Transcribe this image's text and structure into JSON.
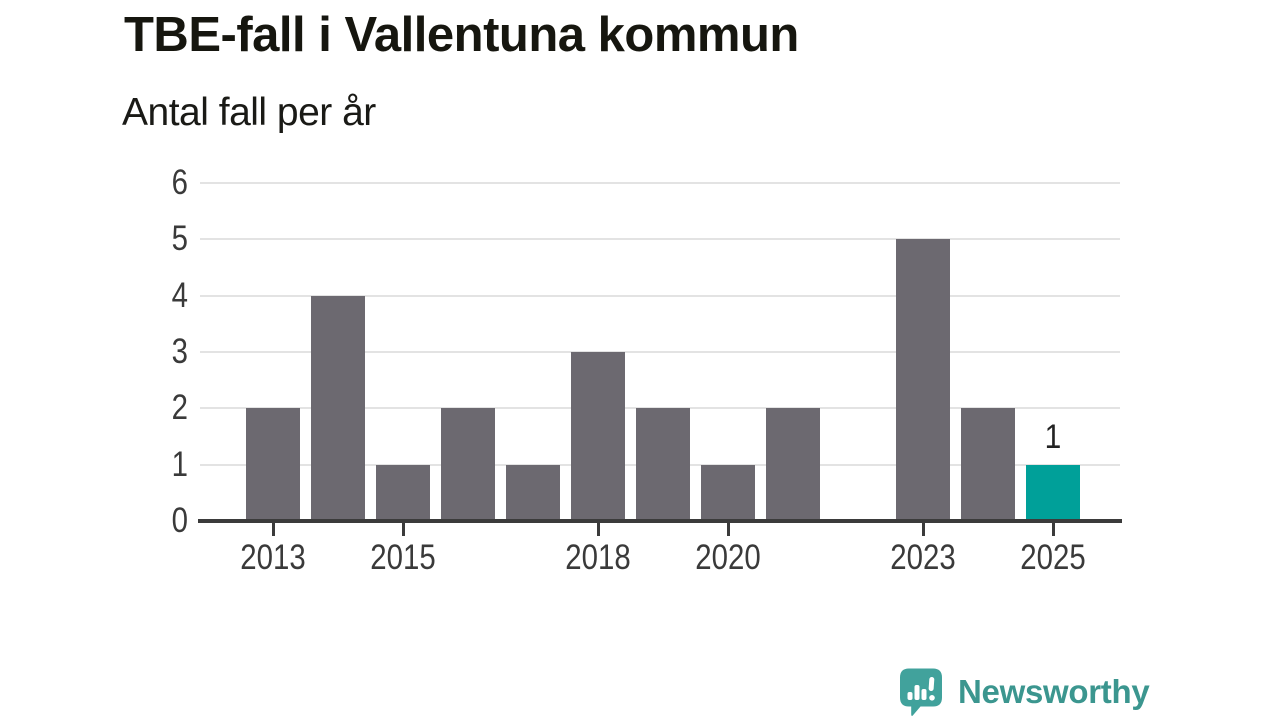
{
  "header": {
    "title": "TBE-fall i Vallentuna kommun",
    "subtitle": "Antal fall per år"
  },
  "chart_data": {
    "type": "bar",
    "title": "TBE-fall i Vallentuna kommun",
    "subtitle": "Antal fall per år",
    "categories": [
      2013,
      2014,
      2015,
      2016,
      2017,
      2018,
      2019,
      2020,
      2021,
      2022,
      2023,
      2024,
      2025
    ],
    "values": [
      2,
      4,
      1,
      2,
      1,
      3,
      2,
      1,
      2,
      0,
      5,
      2,
      1
    ],
    "highlight_category": 2025,
    "annotations": [
      {
        "category": 2025,
        "text": "1"
      }
    ],
    "ylim": [
      0,
      6
    ],
    "yticks": [
      0,
      1,
      2,
      3,
      4,
      5,
      6
    ],
    "xticks": [
      2013,
      2015,
      2018,
      2020,
      2023,
      2025
    ],
    "grid": true,
    "legend": false,
    "colors": {
      "bar": "#6c6970",
      "highlight": "#00a099",
      "grid": "#e3e3e3",
      "axis": "#3b3b3b",
      "tick_label": "#3a3a3a"
    }
  },
  "footer": {
    "brand": "Newsworthy",
    "logo_icon": "newsworthy-speech-bubble-chart-icon",
    "brand_color": "#3b968f",
    "icon_color": "#41a29c"
  }
}
